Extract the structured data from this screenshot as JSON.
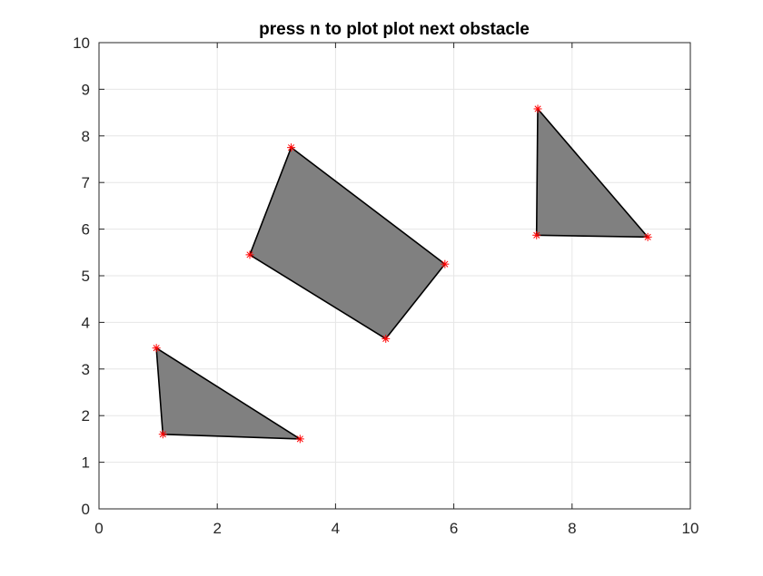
{
  "chart_data": {
    "type": "scatter",
    "title": "press n to plot plot next obstacle",
    "xlabel": "",
    "ylabel": "",
    "xlim": [
      0,
      10
    ],
    "ylim": [
      0,
      10
    ],
    "xticks": [
      0,
      2,
      4,
      6,
      8,
      10
    ],
    "yticks": [
      0,
      1,
      2,
      3,
      4,
      5,
      6,
      7,
      8,
      9,
      10
    ],
    "grid": true,
    "colors": {
      "polygon_fill": "#808080",
      "polygon_edge": "#000000",
      "vertex_marker": "#ff0000",
      "grid": "#e6e6e6",
      "axis": "#262626"
    },
    "obstacles": [
      {
        "vertices": [
          [
            0.97,
            3.45
          ],
          [
            1.08,
            1.6
          ],
          [
            3.4,
            1.5
          ]
        ]
      },
      {
        "vertices": [
          [
            2.55,
            5.45
          ],
          [
            3.25,
            7.75
          ],
          [
            5.85,
            5.25
          ],
          [
            4.85,
            3.65
          ]
        ]
      },
      {
        "vertices": [
          [
            7.42,
            8.58
          ],
          [
            7.4,
            5.87
          ],
          [
            9.28,
            5.83
          ]
        ]
      }
    ]
  }
}
